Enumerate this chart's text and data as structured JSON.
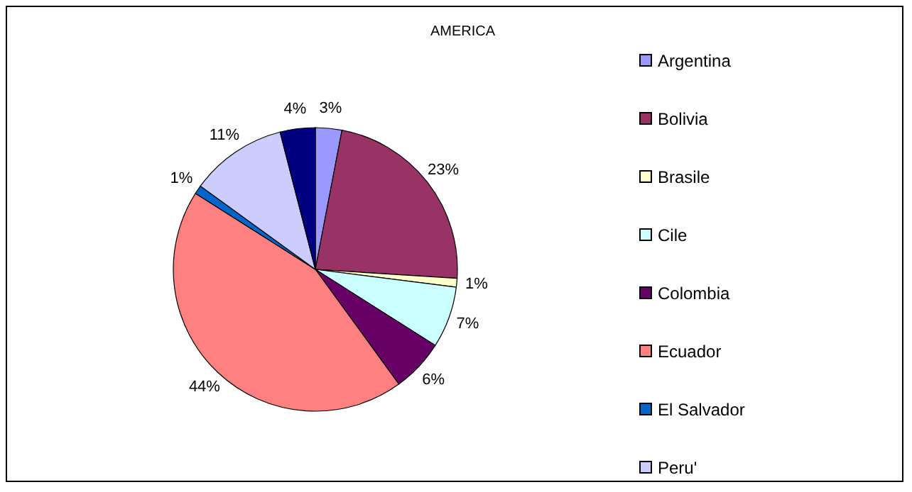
{
  "chart_data": {
    "type": "pie",
    "title": "AMERICA",
    "categories": [
      "Argentina",
      "Bolivia",
      "Brasile",
      "Cile",
      "Colombia",
      "Ecuador",
      "El Salvador",
      "Peru'",
      null
    ],
    "values": [
      3,
      23,
      1,
      7,
      6,
      44,
      1,
      11,
      4
    ],
    "colors": [
      "#9999ff",
      "#993366",
      "#ffffcc",
      "#ccffff",
      "#660066",
      "#ff8080",
      "#0066cc",
      "#ccccff",
      "#000080"
    ],
    "value_labels": [
      "3%",
      "23%",
      "1%",
      "7%",
      "6%",
      "44%",
      "1%",
      "11%",
      "4%"
    ],
    "legend": "right"
  }
}
